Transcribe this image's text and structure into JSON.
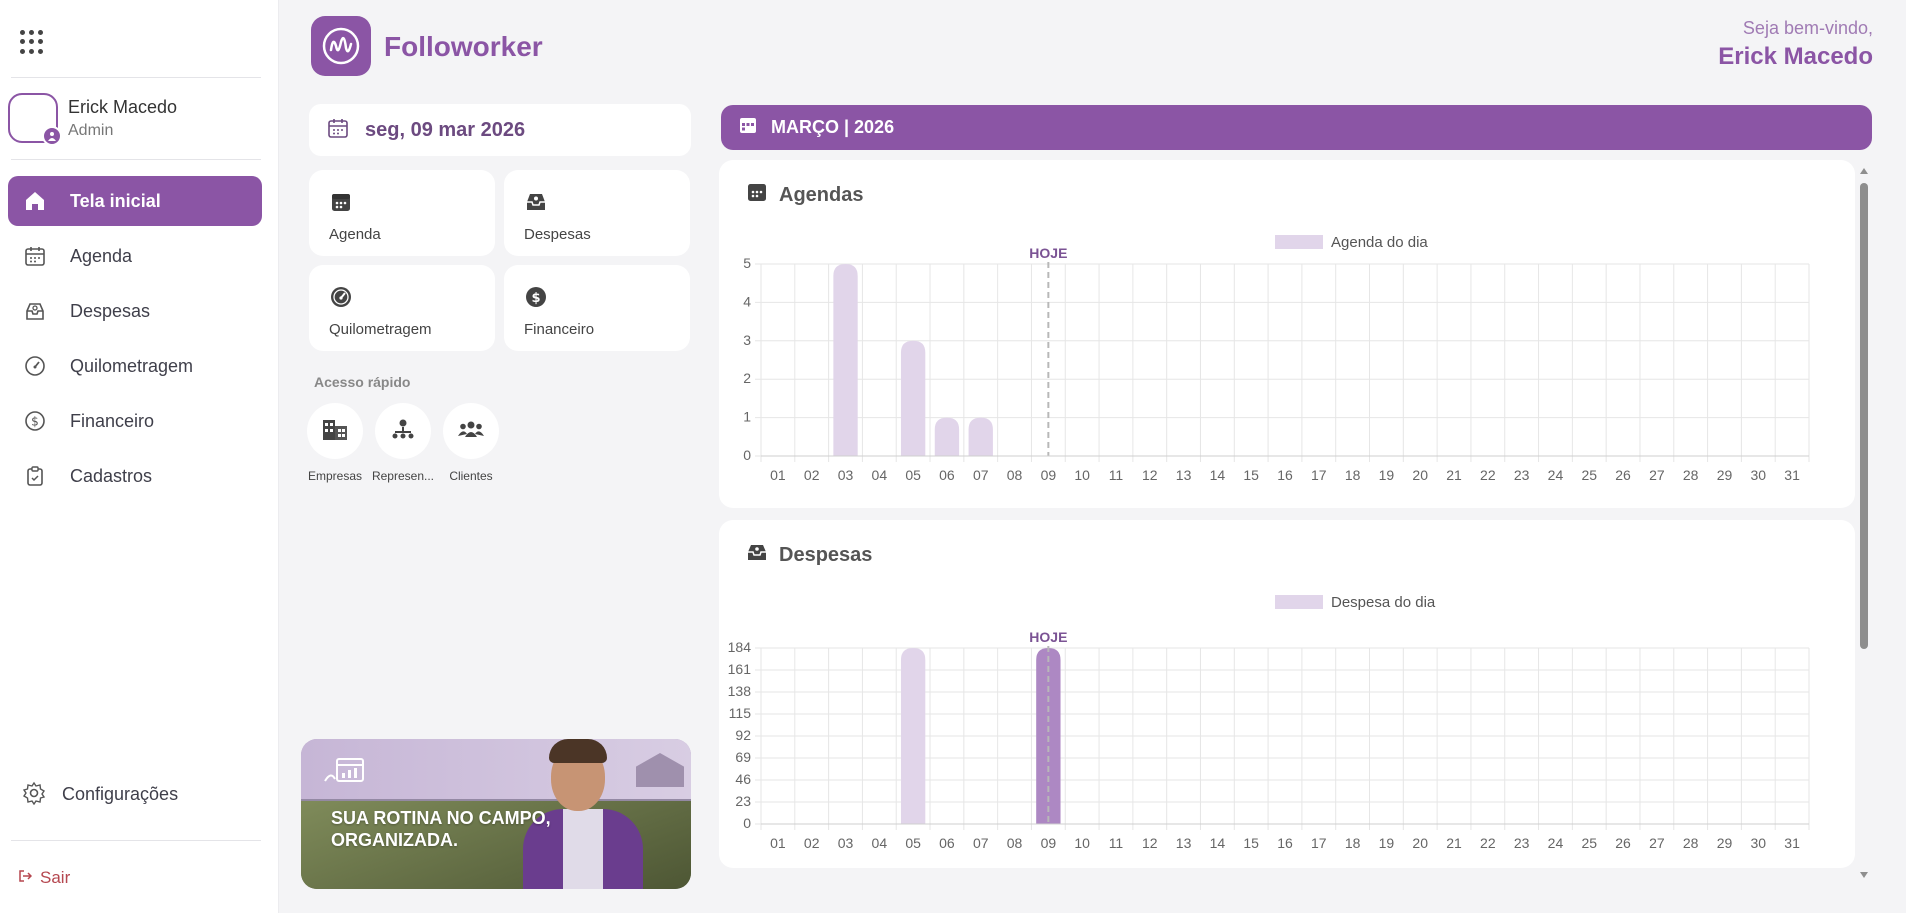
{
  "sidebar": {
    "user": {
      "name": "Erick Macedo",
      "role": "Admin"
    },
    "items": [
      {
        "label": "Tela inicial",
        "icon": "home-icon",
        "active": true
      },
      {
        "label": "Agenda",
        "icon": "calendar-icon",
        "active": false
      },
      {
        "label": "Despesas",
        "icon": "inbox-icon",
        "active": false
      },
      {
        "label": "Quilometragem",
        "icon": "speedometer-icon",
        "active": false
      },
      {
        "label": "Financeiro",
        "icon": "dollar-icon",
        "active": false
      },
      {
        "label": "Cadastros",
        "icon": "clipboard-icon",
        "active": false
      }
    ],
    "settings_label": "Configurações",
    "logout_label": "Sair"
  },
  "header": {
    "brand": "Followorker",
    "welcome": "Seja bem-vindo,",
    "user_name": "Erick Macedo"
  },
  "left": {
    "date": "seg, 09 mar 2026",
    "tiles": [
      {
        "label": "Agenda",
        "icon": "calendar-icon"
      },
      {
        "label": "Despesas",
        "icon": "inbox-icon"
      },
      {
        "label": "Quilometragem",
        "icon": "speedometer-icon"
      },
      {
        "label": "Financeiro",
        "icon": "dollar-icon"
      }
    ],
    "quick_access_title": "Acesso rápido",
    "quick_access": [
      {
        "label": "Empresas",
        "icon": "building-icon"
      },
      {
        "label": "Represen...",
        "icon": "network-icon"
      },
      {
        "label": "Clientes",
        "icon": "users-icon"
      }
    ],
    "banner_text": "SUA ROTINA NO CAMPO,\nORGANIZADA."
  },
  "month_label": "MARÇO | 2026",
  "colors": {
    "accent": "#8b55a5",
    "bar": "#e1d5ea",
    "bar_today": "#ad88c3",
    "today_line": "#b8b8b8"
  },
  "chart_data": [
    {
      "type": "bar",
      "title": "Agendas",
      "legend": "Agenda do dia",
      "legend_position": "top-center",
      "today_label": "HOJE",
      "today_category": "09",
      "categories": [
        "01",
        "02",
        "03",
        "04",
        "05",
        "06",
        "07",
        "08",
        "09",
        "10",
        "11",
        "12",
        "13",
        "14",
        "15",
        "16",
        "17",
        "18",
        "19",
        "20",
        "21",
        "22",
        "23",
        "24",
        "25",
        "26",
        "27",
        "28",
        "29",
        "30",
        "31"
      ],
      "values": [
        0,
        0,
        5,
        0,
        3,
        1,
        1,
        0,
        0,
        0,
        0,
        0,
        0,
        0,
        0,
        0,
        0,
        0,
        0,
        0,
        0,
        0,
        0,
        0,
        0,
        0,
        0,
        0,
        0,
        0,
        0
      ],
      "yticks": [
        0,
        1,
        2,
        3,
        4,
        5
      ],
      "ylim": [
        0,
        5
      ],
      "grid": true
    },
    {
      "type": "bar",
      "title": "Despesas",
      "legend": "Despesa do dia",
      "legend_position": "top-center",
      "today_label": "HOJE",
      "today_category": "09",
      "categories": [
        "01",
        "02",
        "03",
        "04",
        "05",
        "06",
        "07",
        "08",
        "09",
        "10",
        "11",
        "12",
        "13",
        "14",
        "15",
        "16",
        "17",
        "18",
        "19",
        "20",
        "21",
        "22",
        "23",
        "24",
        "25",
        "26",
        "27",
        "28",
        "29",
        "30",
        "31"
      ],
      "values": [
        0,
        0,
        0,
        0,
        184,
        0,
        0,
        0,
        184,
        0,
        0,
        0,
        0,
        0,
        0,
        0,
        0,
        0,
        0,
        0,
        0,
        0,
        0,
        0,
        0,
        0,
        0,
        0,
        0,
        0,
        0
      ],
      "yticks": [
        0,
        23,
        46,
        69,
        92,
        115,
        138,
        161,
        184
      ],
      "ylim": [
        0,
        184
      ],
      "grid": true
    }
  ]
}
